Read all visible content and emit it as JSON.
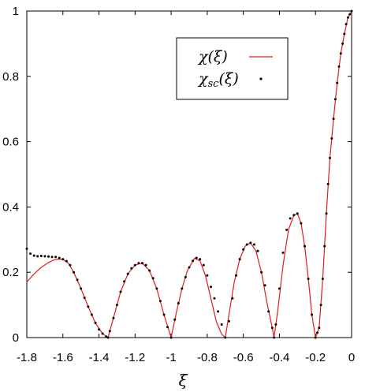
{
  "chart_data": {
    "type": "line",
    "title": "",
    "xlabel": "ξ",
    "ylabel": "",
    "xlim": [
      -1.8,
      0
    ],
    "ylim": [
      0,
      1
    ],
    "grid": false,
    "legend_position": "top-right",
    "xticks": [
      -1.8,
      -1.6,
      -1.4,
      -1.2,
      -1,
      -0.8,
      -0.6,
      -0.4,
      -0.2,
      0
    ],
    "xtick_labels": [
      "-1.8",
      "-1.6",
      "-1.4",
      "-1.2",
      "-1",
      "-0.8",
      "-0.6",
      "-0.4",
      "-0.2",
      "0"
    ],
    "yticks": [
      0,
      0.2,
      0.4,
      0.6,
      0.8,
      1
    ],
    "ytick_labels": [
      "0",
      "0.2",
      "0.4",
      "0.6",
      "0.8",
      "1"
    ],
    "series": [
      {
        "name": "χ(ξ)",
        "legend_main": "χ",
        "legend_sub": "",
        "legend_arg": "(ξ)",
        "style": "line",
        "color": "#e41a1c",
        "x": [
          -1.8,
          -1.76,
          -1.72,
          -1.68,
          -1.64,
          -1.6,
          -1.57,
          -1.54,
          -1.5,
          -1.46,
          -1.42,
          -1.38,
          -1.35,
          -1.32,
          -1.28,
          -1.24,
          -1.2,
          -1.16,
          -1.12,
          -1.08,
          -1.04,
          -1.0,
          -0.97,
          -0.94,
          -0.91,
          -0.87,
          -0.84,
          -0.81,
          -0.78,
          -0.75,
          -0.72,
          -0.7,
          -0.68,
          -0.65,
          -0.62,
          -0.59,
          -0.56,
          -0.53,
          -0.5,
          -0.47,
          -0.44,
          -0.43,
          -0.41,
          -0.38,
          -0.35,
          -0.32,
          -0.3,
          -0.28,
          -0.26,
          -0.24,
          -0.22,
          -0.2,
          -0.18,
          -0.16,
          -0.14,
          -0.12,
          -0.1,
          -0.08,
          -0.06,
          -0.04,
          -0.02,
          0
        ],
        "y": [
          0.17,
          0.195,
          0.215,
          0.23,
          0.24,
          0.24,
          0.228,
          0.2,
          0.15,
          0.095,
          0.045,
          0.012,
          0.0,
          0.06,
          0.14,
          0.195,
          0.222,
          0.228,
          0.205,
          0.15,
          0.07,
          0.0,
          0.08,
          0.15,
          0.205,
          0.243,
          0.235,
          0.19,
          0.12,
          0.05,
          0.01,
          0.0,
          0.07,
          0.17,
          0.24,
          0.28,
          0.29,
          0.265,
          0.2,
          0.11,
          0.03,
          0.0,
          0.08,
          0.22,
          0.33,
          0.375,
          0.38,
          0.35,
          0.28,
          0.18,
          0.07,
          0.0,
          0.03,
          0.18,
          0.38,
          0.55,
          0.67,
          0.78,
          0.87,
          0.93,
          0.98,
          1.0
        ]
      },
      {
        "name": "χsc(ξ)",
        "legend_main": "χ",
        "legend_sub": "sc",
        "legend_arg": "(ξ)",
        "style": "points",
        "color": "#000000",
        "x": [
          -1.8,
          -1.78,
          -1.76,
          -1.74,
          -1.72,
          -1.7,
          -1.68,
          -1.66,
          -1.64,
          -1.62,
          -1.6,
          -1.58,
          -1.56,
          -1.54,
          -1.52,
          -1.5,
          -1.48,
          -1.46,
          -1.44,
          -1.42,
          -1.4,
          -1.38,
          -1.36,
          -1.35,
          -1.34,
          -1.32,
          -1.3,
          -1.28,
          -1.26,
          -1.24,
          -1.22,
          -1.2,
          -1.18,
          -1.16,
          -1.14,
          -1.12,
          -1.1,
          -1.08,
          -1.06,
          -1.04,
          -1.02,
          -1.0,
          -0.98,
          -0.96,
          -0.94,
          -0.92,
          -0.9,
          -0.88,
          -0.86,
          -0.84,
          -0.82,
          -0.8,
          -0.78,
          -0.76,
          -0.74,
          -0.72,
          -0.7,
          -0.68,
          -0.66,
          -0.64,
          -0.62,
          -0.6,
          -0.58,
          -0.56,
          -0.54,
          -0.52,
          -0.5,
          -0.48,
          -0.46,
          -0.44,
          -0.43,
          -0.42,
          -0.4,
          -0.38,
          -0.36,
          -0.34,
          -0.32,
          -0.3,
          -0.28,
          -0.26,
          -0.24,
          -0.22,
          -0.2,
          -0.19,
          -0.18,
          -0.17,
          -0.16,
          -0.15,
          -0.14,
          -0.13,
          -0.12,
          -0.11,
          -0.1,
          -0.09,
          -0.08,
          -0.07,
          -0.06,
          -0.05,
          -0.04,
          -0.03,
          -0.02,
          -0.01,
          0
        ],
        "y": [
          0.272,
          0.257,
          0.251,
          0.249,
          0.25,
          0.249,
          0.248,
          0.247,
          0.247,
          0.244,
          0.24,
          0.234,
          0.222,
          0.2,
          0.177,
          0.15,
          0.122,
          0.095,
          0.07,
          0.045,
          0.025,
          0.012,
          0.003,
          0.0,
          0.02,
          0.06,
          0.1,
          0.14,
          0.172,
          0.195,
          0.212,
          0.222,
          0.228,
          0.228,
          0.222,
          0.205,
          0.182,
          0.15,
          0.112,
          0.07,
          0.032,
          0.0,
          0.055,
          0.105,
          0.15,
          0.185,
          0.215,
          0.235,
          0.244,
          0.24,
          0.222,
          0.19,
          0.155,
          0.12,
          0.08,
          0.04,
          0.0,
          0.05,
          0.12,
          0.19,
          0.24,
          0.27,
          0.285,
          0.29,
          0.285,
          0.265,
          0.2,
          0.16,
          0.08,
          0.03,
          0.0,
          0.04,
          0.15,
          0.26,
          0.33,
          0.365,
          0.375,
          0.38,
          0.35,
          0.28,
          0.18,
          0.07,
          0.0,
          0.015,
          0.03,
          0.1,
          0.18,
          0.28,
          0.38,
          0.47,
          0.55,
          0.61,
          0.67,
          0.73,
          0.78,
          0.83,
          0.87,
          0.9,
          0.93,
          0.96,
          0.98,
          0.99,
          1.0
        ]
      }
    ]
  }
}
